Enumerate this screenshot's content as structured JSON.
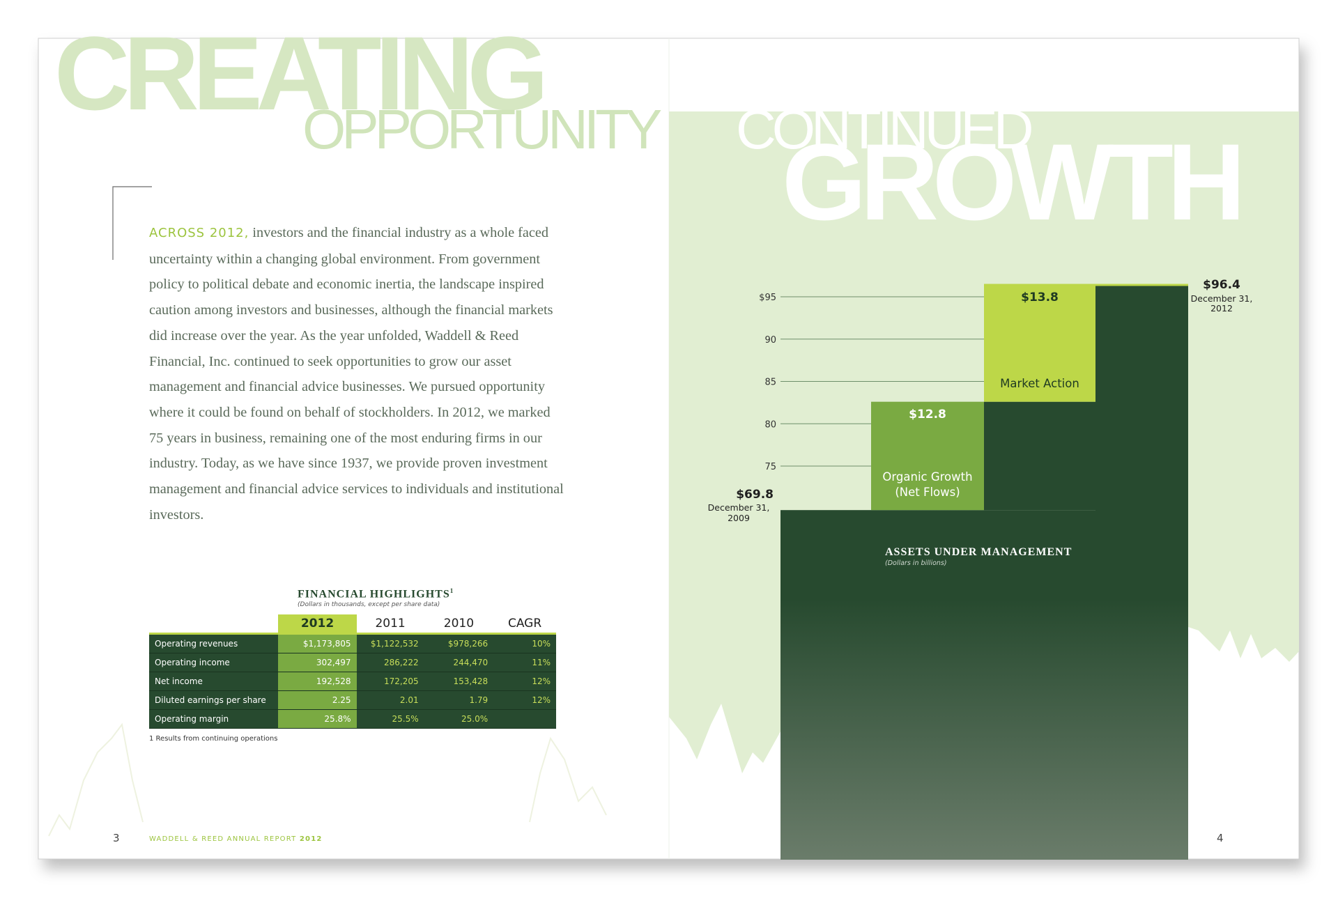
{
  "left_page": {
    "headline": "CREATING",
    "subheadline": "OPPORTUNITY",
    "intro": {
      "lead": "ACROSS 2012,",
      "text": "investors and the financial industry as a whole faced uncertainty within a changing global environment. From government policy to political debate and economic inertia, the landscape inspired caution among investors and businesses, although the financial markets did increase over the year. As the year unfolded, Waddell & Reed Financial, Inc. continued to seek opportunities to grow our asset management and financial advice businesses. We pursued opportunity where it could be found on behalf of stockholders. In 2012, we marked 75 years in business, remaining one of the most enduring firms in our industry. Today, as we have since 1937, we provide proven investment management and financial advice services to individuals and institutional investors."
    },
    "table": {
      "title": "FINANCIAL HIGHLIGHTS",
      "title_note": "1",
      "subtitle": "(Dollars in thousands, except per share data)",
      "columns": [
        "2012",
        "2011",
        "2010",
        "CAGR"
      ],
      "rows": [
        [
          "Operating revenues",
          "$1,173,805",
          "$1,122,532",
          "$978,266",
          "10%"
        ],
        [
          "Operating income",
          "302,497",
          "286,222",
          "244,470",
          "11%"
        ],
        [
          "Net income",
          "192,528",
          "172,205",
          "153,428",
          "12%"
        ],
        [
          "Diluted earnings per share",
          "2.25",
          "2.01",
          "1.79",
          "12%"
        ],
        [
          "Operating margin",
          "25.8%",
          "25.5%",
          "25.0%"
        ]
      ]
    },
    "footnote": "1 Results from continuing operations",
    "page_number": "3",
    "footer": {
      "text": "WADDELL & REED ANNUAL REPORT",
      "year": "2012"
    }
  },
  "right_page": {
    "headline_small": "CONTINUED",
    "headline": "GROWTH",
    "page_number": "4"
  },
  "chart_data": {
    "type": "waterfall",
    "title": "ASSETS UNDER MANAGEMENT",
    "subtitle": "(Dollars in billions)",
    "categories": [
      "December 31, 2009",
      "Organic Growth (Net Flows)",
      "Market Action",
      "December 31, 2012"
    ],
    "values": [
      69.8,
      12.8,
      13.8,
      96.4
    ],
    "value_labels": [
      "$69.8",
      "$12.8",
      "$13.8",
      "$96.4"
    ],
    "colors": [
      "#274a2f",
      "#7aaa42",
      "#bdd748",
      "#274a2f"
    ],
    "ylim": [
      28.5,
      97
    ],
    "yticks": [
      {
        "value": 95,
        "label": "$95"
      },
      90,
      85,
      80,
      75
    ],
    "grid": true
  }
}
